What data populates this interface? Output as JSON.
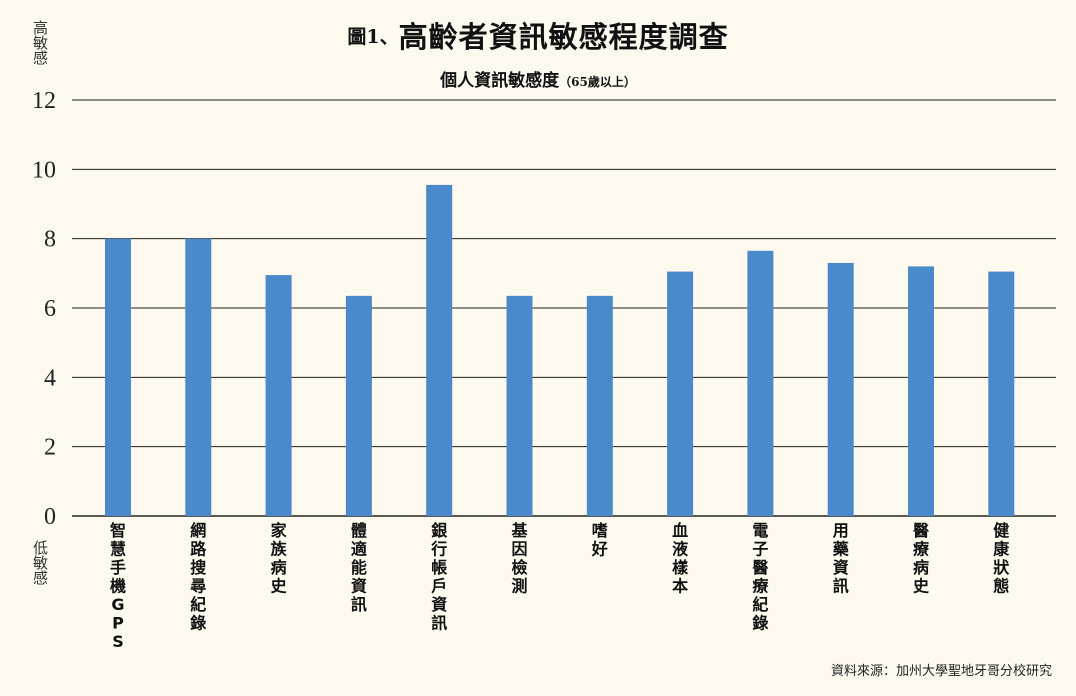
{
  "header": {
    "figure_prefix": "圖1、",
    "title": "高齡者資訊敏感程度調查",
    "subtitle": "個人資訊敏感度",
    "subtitle_note": "（65歲以上）"
  },
  "axis_labels": {
    "high": "高敏感",
    "low": "低敏感"
  },
  "source": "資料來源：加州大學聖地牙哥分校研究",
  "chart_data": {
    "type": "bar",
    "title": "圖1、高齡者資訊敏感程度調查",
    "subtitle": "個人資訊敏感度（65歲以上）",
    "xlabel": "",
    "ylabel": "",
    "ylim": [
      0,
      12
    ],
    "yticks": [
      0,
      2,
      4,
      6,
      8,
      10,
      12
    ],
    "grid": true,
    "bar_color": "#4a8acb",
    "categories": [
      "智慧手機GPS",
      "網路搜尋紀錄",
      "家族病史",
      "體適能資訊",
      "銀行帳戶資訊",
      "基因檢測",
      "嗜好",
      "血液樣本",
      "電子醫療紀錄",
      "用藥資訊",
      "醫療病史",
      "健康狀態"
    ],
    "values": [
      8.0,
      8.0,
      6.95,
      6.35,
      9.55,
      6.35,
      6.35,
      7.05,
      7.65,
      7.3,
      7.2,
      7.05
    ]
  }
}
